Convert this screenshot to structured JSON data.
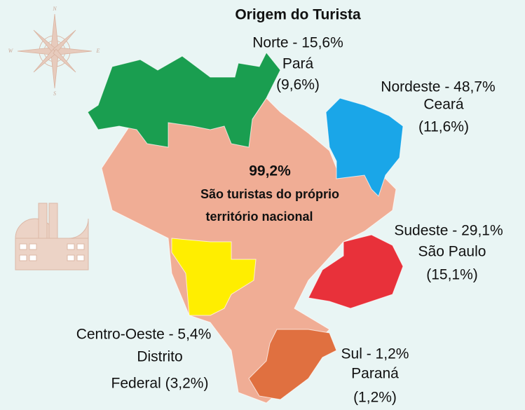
{
  "title": "Origem do Turista",
  "compass": {
    "north": "N",
    "east": "E",
    "south": "S",
    "west": "W"
  },
  "center": {
    "value": "99,2%",
    "line1": "São turistas do próprio",
    "line2": "território nacional"
  },
  "regions": [
    {
      "heading": "Norte - 15,6%",
      "state": "Pará",
      "share": "(9,6%)"
    },
    {
      "heading": "Nordeste - 48,7%",
      "state": "Ceará",
      "share": "(11,6%)"
    },
    {
      "heading": "Sudeste - 29,1%",
      "state": "São Paulo",
      "share": "(15,1%)"
    },
    {
      "heading": "Centro-Oeste - 5,4%",
      "state": "Distrito",
      "share": "Federal (3,2%)"
    },
    {
      "heading": "Sul - 1,2%",
      "state": "Paraná",
      "share": "(1,2%)"
    }
  ]
}
